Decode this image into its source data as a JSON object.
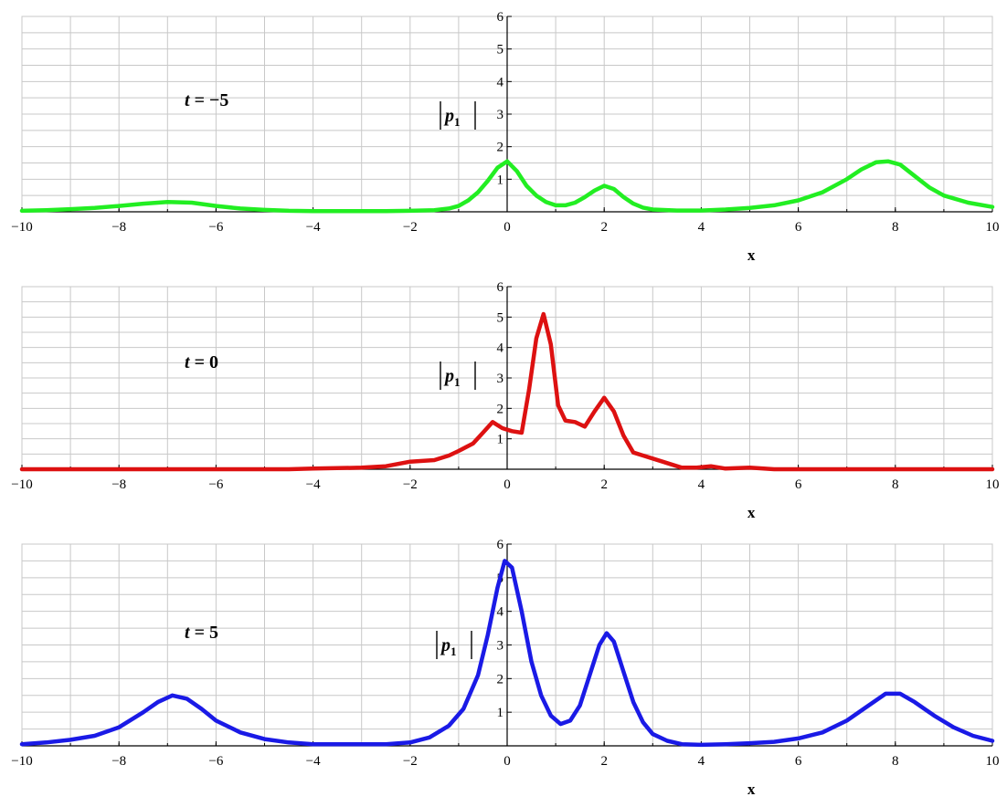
{
  "chart_data": [
    {
      "type": "line",
      "annotation": "t = −5",
      "xlabel": "x",
      "ylabel": "p",
      "ylabel_sub": "1",
      "xlim": [
        -10,
        10
      ],
      "ylim": [
        0,
        6
      ],
      "xticks": [
        -10,
        -8,
        -6,
        -4,
        -2,
        0,
        2,
        4,
        6,
        8,
        10
      ],
      "yticks": [
        1,
        2,
        3,
        4,
        5,
        6
      ],
      "grid": true,
      "series": [
        {
          "color": "#22ee22",
          "x": [
            -10,
            -9.5,
            -9,
            -8.5,
            -8,
            -7.5,
            -7,
            -6.5,
            -6,
            -5.5,
            -5,
            -4.5,
            -4,
            -3.5,
            -3,
            -2.5,
            -2,
            -1.5,
            -1.2,
            -1,
            -0.8,
            -0.6,
            -0.4,
            -0.2,
            0,
            0.2,
            0.4,
            0.6,
            0.8,
            1,
            1.2,
            1.4,
            1.6,
            1.8,
            2,
            2.2,
            2.4,
            2.6,
            2.8,
            3,
            3.5,
            4,
            4.5,
            5,
            5.5,
            6,
            6.5,
            7,
            7.3,
            7.6,
            7.85,
            8.1,
            8.4,
            8.7,
            9,
            9.5,
            10
          ],
          "y": [
            0.03,
            0.05,
            0.08,
            0.12,
            0.18,
            0.25,
            0.3,
            0.28,
            0.18,
            0.1,
            0.06,
            0.03,
            0.02,
            0.02,
            0.02,
            0.02,
            0.03,
            0.05,
            0.1,
            0.18,
            0.35,
            0.6,
            0.95,
            1.35,
            1.55,
            1.25,
            0.8,
            0.5,
            0.3,
            0.2,
            0.2,
            0.28,
            0.45,
            0.65,
            0.8,
            0.7,
            0.45,
            0.25,
            0.13,
            0.07,
            0.04,
            0.04,
            0.07,
            0.12,
            0.2,
            0.35,
            0.6,
            1.0,
            1.3,
            1.52,
            1.55,
            1.45,
            1.1,
            0.75,
            0.5,
            0.28,
            0.15
          ]
        }
      ]
    },
    {
      "type": "line",
      "annotation": "t = 0",
      "xlabel": "x",
      "ylabel": "p",
      "ylabel_sub": "1",
      "xlim": [
        -10,
        10
      ],
      "ylim": [
        0,
        6
      ],
      "xticks": [
        -10,
        -8,
        -6,
        -4,
        -2,
        0,
        2,
        4,
        6,
        8,
        10
      ],
      "yticks": [
        1,
        2,
        3,
        4,
        5,
        6
      ],
      "grid": true,
      "series": [
        {
          "color": "#dd1111",
          "x": [
            -10,
            -6,
            -4.5,
            -4,
            -3,
            -2.5,
            -2,
            -1.5,
            -1.2,
            -1,
            -0.7,
            -0.5,
            -0.3,
            -0.1,
            0.1,
            0.3,
            0.45,
            0.6,
            0.75,
            0.9,
            1.05,
            1.2,
            1.4,
            1.6,
            1.8,
            2,
            2.2,
            2.4,
            2.6,
            2.8,
            3,
            3.3,
            3.6,
            3.9,
            4.2,
            4.5,
            5,
            5.5,
            6,
            10
          ],
          "y": [
            0,
            0,
            0,
            0.02,
            0.05,
            0.1,
            0.25,
            0.3,
            0.45,
            0.6,
            0.85,
            1.2,
            1.55,
            1.35,
            1.25,
            1.2,
            2.6,
            4.3,
            5.1,
            4.1,
            2.1,
            1.6,
            1.55,
            1.4,
            1.9,
            2.35,
            1.9,
            1.1,
            0.55,
            0.45,
            0.35,
            0.2,
            0.05,
            0.05,
            0.1,
            0.02,
            0.05,
            0,
            0,
            0
          ]
        }
      ]
    },
    {
      "type": "line",
      "annotation": "t = 5",
      "xlabel": "x",
      "ylabel": "p",
      "ylabel_sub": "1",
      "xlim": [
        -10,
        10
      ],
      "ylim": [
        0,
        6
      ],
      "xticks": [
        -10,
        -8,
        -6,
        -4,
        -2,
        0,
        2,
        4,
        6,
        8,
        10
      ],
      "yticks": [
        1,
        2,
        3,
        4,
        5,
        6
      ],
      "grid": true,
      "series": [
        {
          "color": "#1a1ae6",
          "x": [
            -10,
            -9.5,
            -9,
            -8.5,
            -8,
            -7.5,
            -7.2,
            -6.9,
            -6.6,
            -6.3,
            -6,
            -5.5,
            -5,
            -4.5,
            -4,
            -3.5,
            -3,
            -2.5,
            -2,
            -1.6,
            -1.2,
            -0.9,
            -0.6,
            -0.4,
            -0.2,
            -0.05,
            0.1,
            0.3,
            0.5,
            0.7,
            0.9,
            1.1,
            1.3,
            1.5,
            1.7,
            1.9,
            2.05,
            2.2,
            2.4,
            2.6,
            2.8,
            3,
            3.3,
            3.6,
            4,
            4.5,
            5,
            5.5,
            6,
            6.5,
            7,
            7.4,
            7.8,
            8.1,
            8.4,
            8.8,
            9.2,
            9.6,
            10
          ],
          "y": [
            0.05,
            0.1,
            0.18,
            0.3,
            0.55,
            1.0,
            1.3,
            1.5,
            1.4,
            1.1,
            0.75,
            0.4,
            0.2,
            0.1,
            0.05,
            0.05,
            0.05,
            0.05,
            0.1,
            0.25,
            0.6,
            1.1,
            2.1,
            3.3,
            4.7,
            5.5,
            5.3,
            4.0,
            2.5,
            1.5,
            0.9,
            0.65,
            0.75,
            1.2,
            2.1,
            3.0,
            3.35,
            3.1,
            2.2,
            1.3,
            0.7,
            0.35,
            0.15,
            0.05,
            0.03,
            0.05,
            0.08,
            0.12,
            0.22,
            0.4,
            0.75,
            1.15,
            1.55,
            1.55,
            1.3,
            0.9,
            0.55,
            0.3,
            0.15
          ]
        }
      ]
    }
  ]
}
